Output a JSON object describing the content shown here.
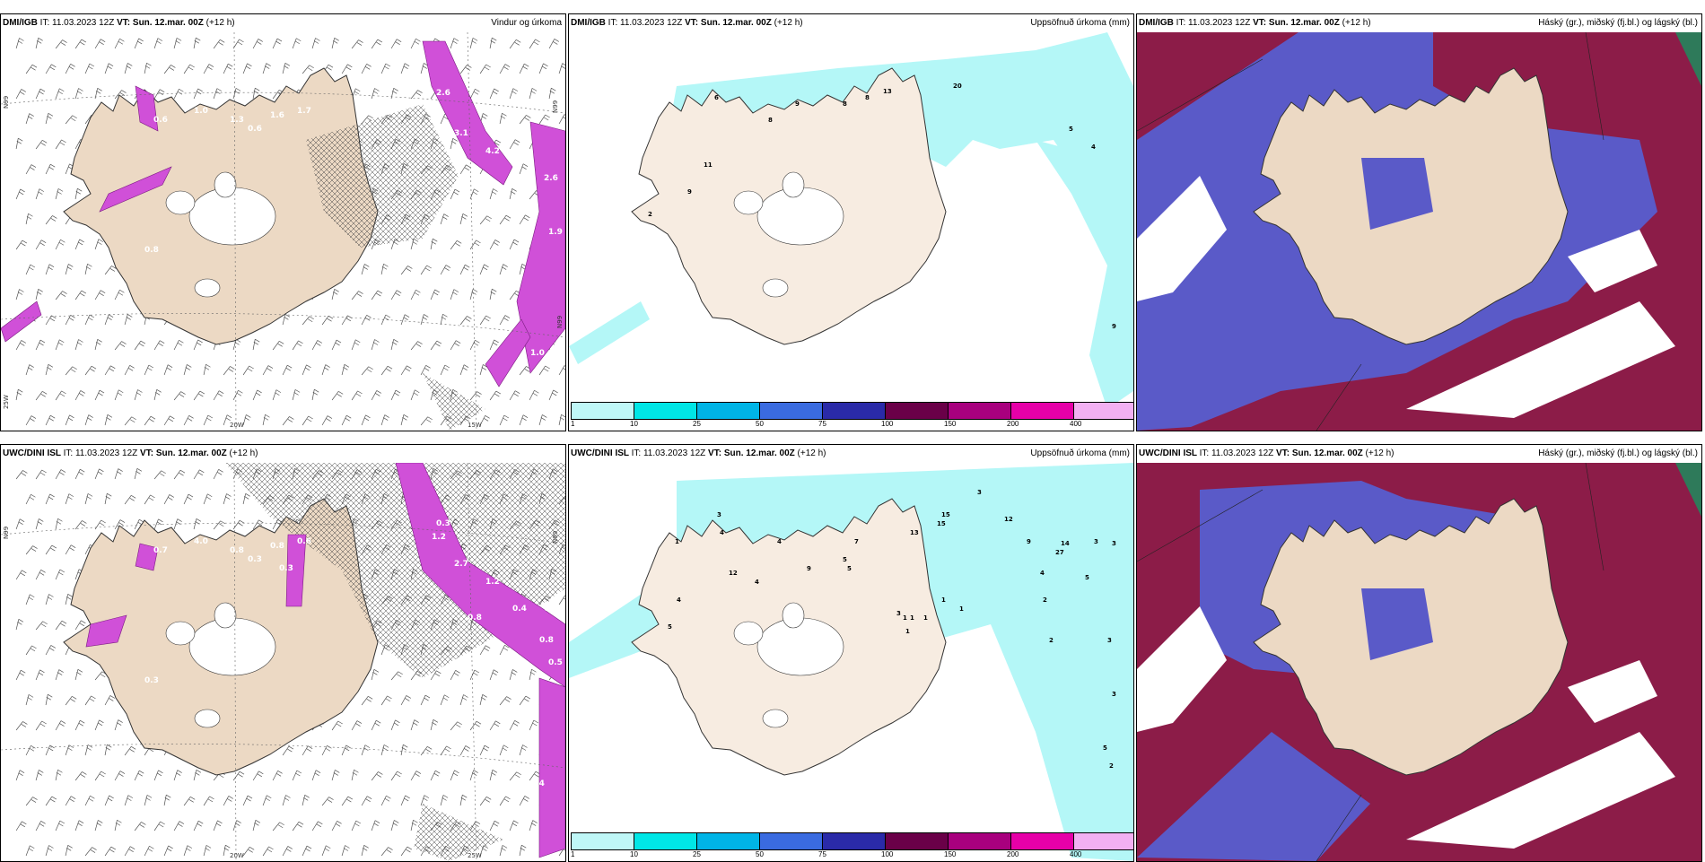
{
  "panels": [
    {
      "id": "p1",
      "source": "DMI/IGB",
      "it_label": "IT:",
      "it": "11.03.2023 12Z",
      "vt_label": "VT:",
      "vt": "Sun. 12.mar. 00Z",
      "lead": "(+12 h)",
      "title": "Vindur og úrkoma",
      "type": "wind",
      "axis_labels": [
        "N99",
        "N99",
        "20W",
        "15W",
        "25W",
        "N99"
      ],
      "values": [
        "0.6",
        "1.0",
        "1.3",
        "0.6",
        "1.6",
        "1.7",
        "2.6",
        "3.1",
        "4.2",
        "1.0",
        "2.6",
        "1.9",
        "0.8",
        "1.0"
      ]
    },
    {
      "id": "p2",
      "source": "DMI/IGB",
      "it_label": "IT:",
      "it": "11.03.2023 12Z",
      "vt_label": "VT:",
      "vt": "Sun. 12.mar. 00Z",
      "lead": "(+12 h)",
      "title": "Uppsöfnuð úrkoma (mm)",
      "type": "accum",
      "values": [
        "6",
        "8",
        "9",
        "8",
        "13",
        "8",
        "20",
        "5",
        "4",
        "11",
        "9",
        "2",
        "9"
      ]
    },
    {
      "id": "p3",
      "source": "DMI/IGB",
      "it_label": "IT:",
      "it": "11.03.2023 12Z",
      "vt_label": "VT:",
      "vt": "Sun. 12.mar. 00Z",
      "lead": "(+12 h)",
      "title": "Háský (gr.), miðský (fj.bl.) og lágský (bl.)",
      "type": "cloud"
    },
    {
      "id": "p4",
      "source": "UWC/DINI ISL",
      "it_label": "IT:",
      "it": "11.03.2023 12Z",
      "vt_label": "VT:",
      "vt": "Sun. 12.mar. 00Z",
      "lead": "(+12 h)",
      "title": "",
      "type": "wind",
      "axis_labels": [
        "N99",
        "N99",
        "20W",
        "25W"
      ],
      "values": [
        "0.7",
        "4.0",
        "0.8",
        "0.3",
        "0.8",
        "0.6",
        "0.3",
        "2.7",
        "1.2",
        "0.4",
        "0.6",
        "0.5",
        "0.3",
        "1.4",
        "1.2",
        "0.8",
        "0.8",
        "0.3"
      ]
    },
    {
      "id": "p5",
      "source": "UWC/DINI ISL",
      "it_label": "IT:",
      "it": "11.03.2023 12Z",
      "vt_label": "VT:",
      "vt": "Sun. 12.mar. 00Z",
      "lead": "(+12 h)",
      "title": "Uppsöfnuð úrkoma (mm)",
      "type": "accum",
      "values": [
        "3",
        "1",
        "4",
        "12",
        "9",
        "7",
        "5",
        "13",
        "15",
        "15",
        "3",
        "12",
        "9",
        "14",
        "27",
        "3",
        "3",
        "5",
        "4",
        "2",
        "2",
        "3",
        "3",
        "3",
        "1",
        "1",
        "1",
        "1",
        "1",
        "4",
        "5",
        "4",
        "4",
        "5",
        "1",
        "5",
        "2"
      ]
    },
    {
      "id": "p6",
      "source": "UWC/DINI ISL",
      "it_label": "IT:",
      "it": "11.03.2023 12Z",
      "vt_label": "VT:",
      "vt": "Sun. 12.mar. 00Z",
      "lead": "(+12 h)",
      "title": "Háský (gr.), miðský (fj.bl.) og lágský (bl.)",
      "type": "cloud"
    }
  ],
  "colorbar": {
    "ticks": [
      "1",
      "10",
      "25",
      "50",
      "75",
      "100",
      "150",
      "200",
      "400"
    ],
    "colors": [
      "#bff7f7",
      "#00e6e6",
      "#00b4e6",
      "#3a6be0",
      "#2a2aa8",
      "#6a0048",
      "#a8007e",
      "#e600a8",
      "#f2b0f2"
    ]
  },
  "colors": {
    "land": "#ecd9c4",
    "precip_cyan": "#b4f7f7",
    "precip_magenta": "#d050d8",
    "cloud_blue": "#5a5ac8",
    "cloud_red": "#8c1c48",
    "cloud_green": "#2e7a5a"
  }
}
